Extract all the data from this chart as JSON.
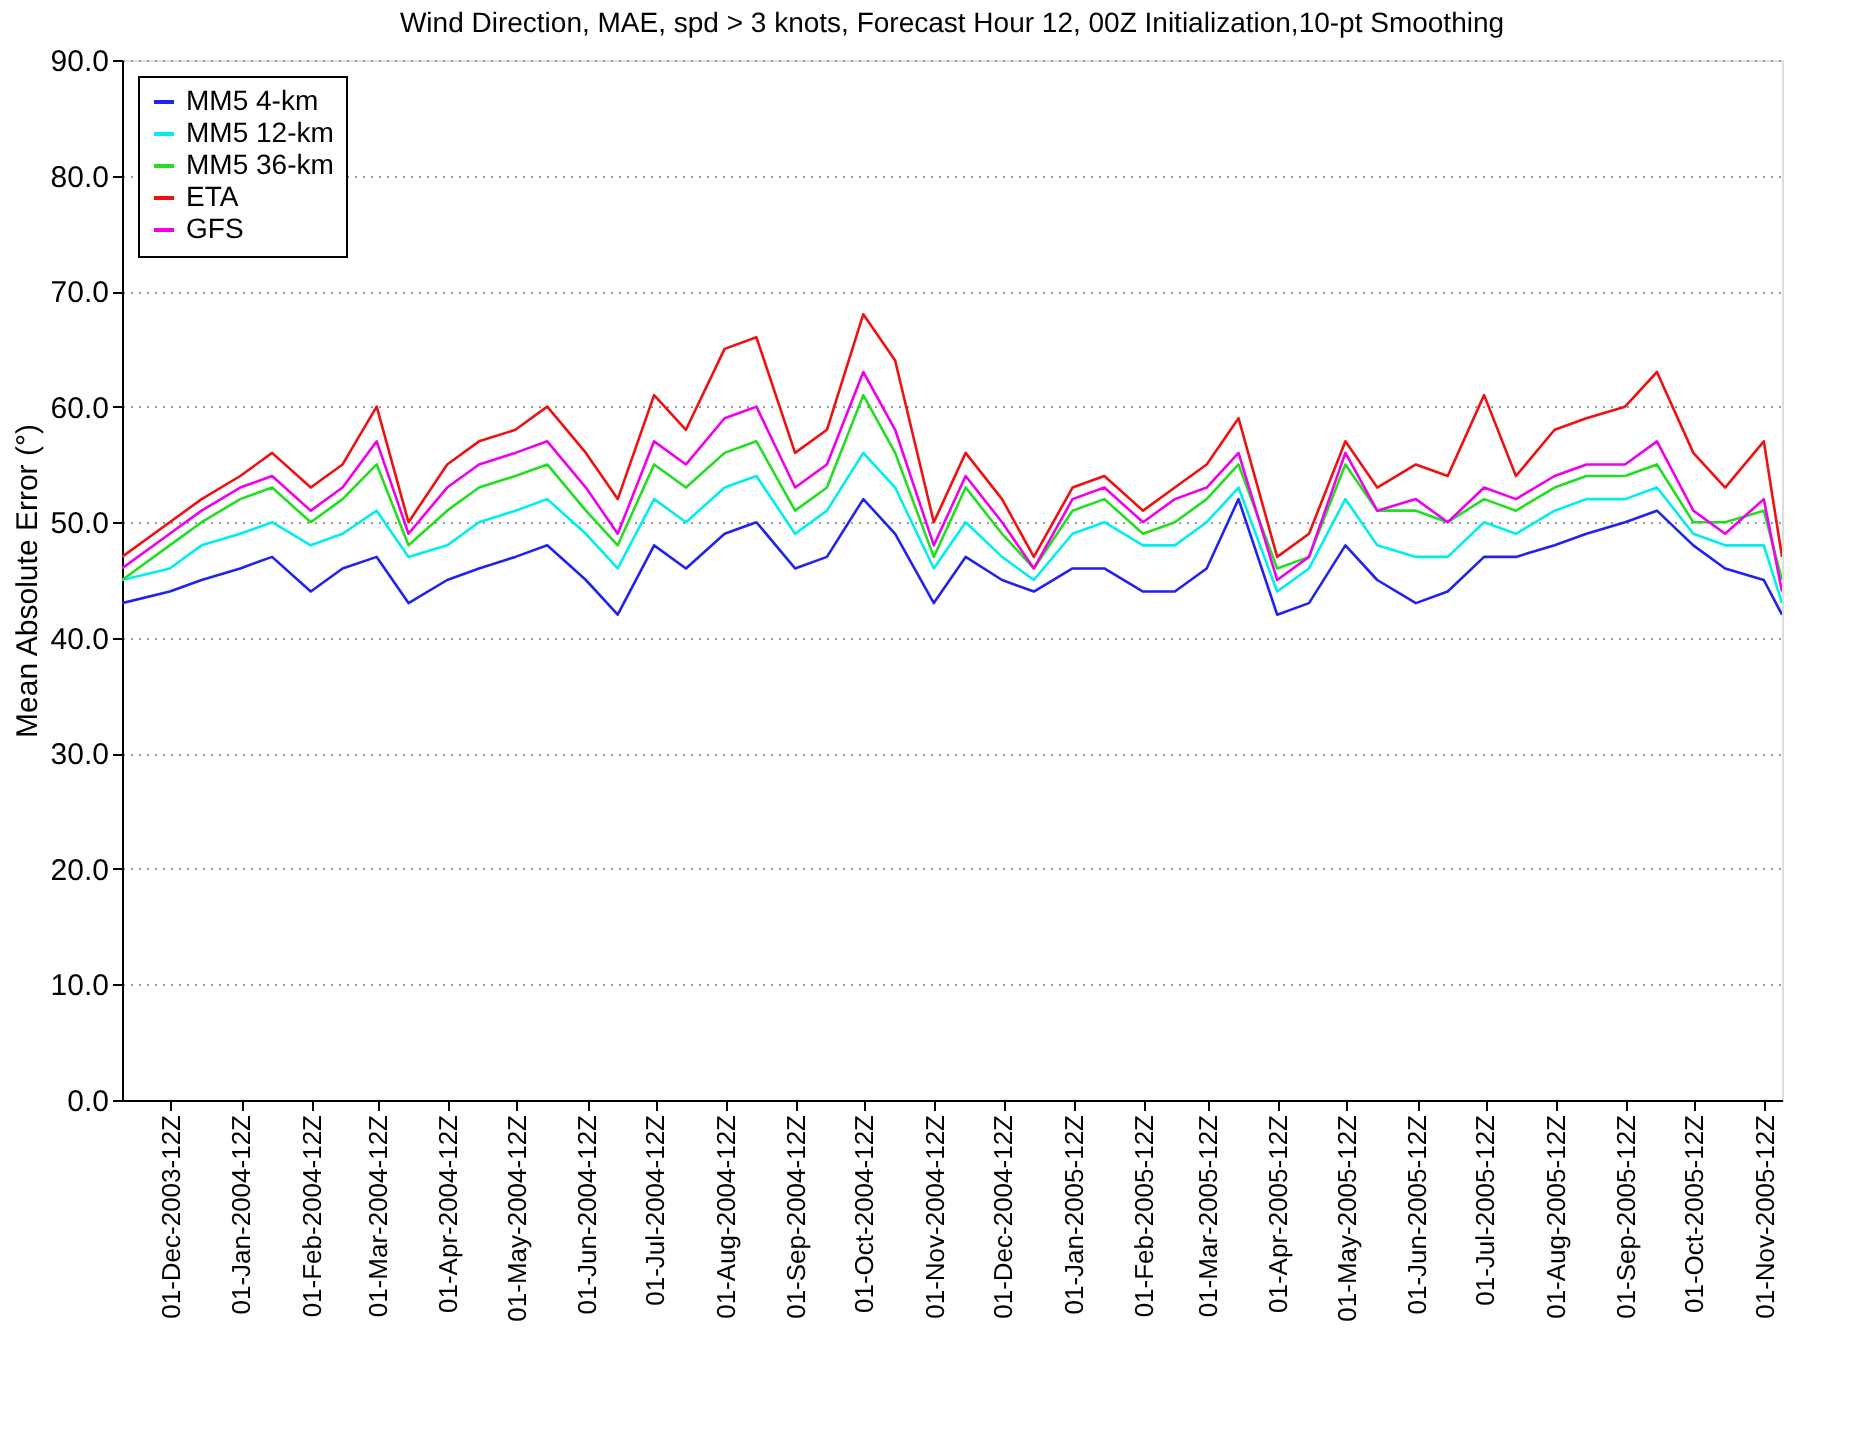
{
  "chart_data": {
    "type": "line",
    "title": "Wind Direction, MAE, spd > 3 knots, Forecast Hour 12, 00Z Initialization,10-pt Smoothing",
    "ylabel": "Mean Absolute Error (°)",
    "x": [
      "2003-11-10",
      "2003-12-01",
      "2003-12-15",
      "2004-01-01",
      "2004-01-15",
      "2004-02-01",
      "2004-02-15",
      "2004-03-01",
      "2004-03-15",
      "2004-04-01",
      "2004-04-15",
      "2004-05-01",
      "2004-05-15",
      "2004-06-01",
      "2004-06-15",
      "2004-07-01",
      "2004-07-15",
      "2004-08-01",
      "2004-08-15",
      "2004-09-01",
      "2004-09-15",
      "2004-10-01",
      "2004-10-15",
      "2004-11-01",
      "2004-11-15",
      "2004-12-01",
      "2004-12-15",
      "2005-01-01",
      "2005-01-15",
      "2005-02-01",
      "2005-02-15",
      "2005-03-01",
      "2005-03-15",
      "2005-04-01",
      "2005-04-15",
      "2005-05-01",
      "2005-05-15",
      "2005-06-01",
      "2005-06-15",
      "2005-07-01",
      "2005-07-15",
      "2005-08-01",
      "2005-08-15",
      "2005-09-01",
      "2005-09-15",
      "2005-10-01",
      "2005-10-15",
      "2005-11-01",
      "2005-11-09"
    ],
    "series": [
      {
        "name": "MM5 4-km",
        "color": "#2222ee",
        "values": [
          43,
          44,
          45,
          46,
          47,
          44,
          46,
          47,
          43,
          45,
          46,
          47,
          48,
          45,
          42,
          48,
          46,
          49,
          50,
          46,
          47,
          52,
          49,
          43,
          47,
          45,
          44,
          46,
          46,
          44,
          44,
          46,
          52,
          42,
          43,
          48,
          45,
          43,
          44,
          47,
          47,
          48,
          49,
          50,
          51,
          48,
          46,
          45,
          42
        ]
      },
      {
        "name": "MM5 12-km",
        "color": "#00eeee",
        "values": [
          45,
          46,
          48,
          49,
          50,
          48,
          49,
          51,
          47,
          48,
          50,
          51,
          52,
          49,
          46,
          52,
          50,
          53,
          54,
          49,
          51,
          56,
          53,
          46,
          50,
          47,
          45,
          49,
          50,
          48,
          48,
          50,
          53,
          44,
          46,
          52,
          48,
          47,
          47,
          50,
          49,
          51,
          52,
          52,
          53,
          49,
          48,
          48,
          43
        ]
      },
      {
        "name": "MM5 36-km",
        "color": "#22dd22",
        "values": [
          45,
          48,
          50,
          52,
          53,
          50,
          52,
          55,
          48,
          51,
          53,
          54,
          55,
          51,
          48,
          55,
          53,
          56,
          57,
          51,
          53,
          61,
          56,
          47,
          53,
          49,
          46,
          51,
          52,
          49,
          50,
          52,
          55,
          46,
          47,
          55,
          51,
          51,
          50,
          52,
          51,
          53,
          54,
          54,
          55,
          50,
          50,
          51,
          45
        ]
      },
      {
        "name": "ETA",
        "color": "#ee1111",
        "values": [
          47,
          50,
          52,
          54,
          56,
          53,
          55,
          60,
          50,
          55,
          57,
          58,
          60,
          56,
          52,
          61,
          58,
          65,
          66,
          56,
          58,
          68,
          64,
          50,
          56,
          52,
          47,
          53,
          54,
          51,
          53,
          55,
          59,
          47,
          49,
          57,
          53,
          55,
          54,
          61,
          54,
          58,
          59,
          60,
          63,
          56,
          53,
          57,
          47
        ]
      },
      {
        "name": "GFS",
        "color": "#ee00ee",
        "values": [
          46,
          49,
          51,
          53,
          54,
          51,
          53,
          57,
          49,
          53,
          55,
          56,
          57,
          53,
          49,
          57,
          55,
          59,
          60,
          53,
          55,
          63,
          58,
          48,
          54,
          50,
          46,
          52,
          53,
          50,
          52,
          53,
          56,
          45,
          47,
          56,
          51,
          52,
          50,
          53,
          52,
          54,
          55,
          55,
          57,
          51,
          49,
          52,
          44
        ]
      }
    ],
    "xlim": [
      "2003-11-10",
      "2005-11-09"
    ],
    "xticks": [
      {
        "value": "2003-12-01T12:00",
        "label": "01-Dec-2003-12Z"
      },
      {
        "value": "2004-01-01T12:00",
        "label": "01-Jan-2004-12Z"
      },
      {
        "value": "2004-02-01T12:00",
        "label": "01-Feb-2004-12Z"
      },
      {
        "value": "2004-03-01T12:00",
        "label": "01-Mar-2004-12Z"
      },
      {
        "value": "2004-04-01T12:00",
        "label": "01-Apr-2004-12Z"
      },
      {
        "value": "2004-05-01T12:00",
        "label": "01-May-2004-12Z"
      },
      {
        "value": "2004-06-01T12:00",
        "label": "01-Jun-2004-12Z"
      },
      {
        "value": "2004-07-01T12:00",
        "label": "01-Jul-2004-12Z"
      },
      {
        "value": "2004-08-01T12:00",
        "label": "01-Aug-2004-12Z"
      },
      {
        "value": "2004-09-01T12:00",
        "label": "01-Sep-2004-12Z"
      },
      {
        "value": "2004-10-01T12:00",
        "label": "01-Oct-2004-12Z"
      },
      {
        "value": "2004-11-01T12:00",
        "label": "01-Nov-2004-12Z"
      },
      {
        "value": "2004-12-01T12:00",
        "label": "01-Dec-2004-12Z"
      },
      {
        "value": "2005-01-01T12:00",
        "label": "01-Jan-2005-12Z"
      },
      {
        "value": "2005-02-01T12:00",
        "label": "01-Feb-2005-12Z"
      },
      {
        "value": "2005-03-01T12:00",
        "label": "01-Mar-2005-12Z"
      },
      {
        "value": "2005-04-01T12:00",
        "label": "01-Apr-2005-12Z"
      },
      {
        "value": "2005-05-01T12:00",
        "label": "01-May-2005-12Z"
      },
      {
        "value": "2005-06-01T12:00",
        "label": "01-Jun-2005-12Z"
      },
      {
        "value": "2005-07-01T12:00",
        "label": "01-Jul-2005-12Z"
      },
      {
        "value": "2005-08-01T12:00",
        "label": "01-Aug-2005-12Z"
      },
      {
        "value": "2005-09-01T12:00",
        "label": "01-Sep-2005-12Z"
      },
      {
        "value": "2005-10-01T12:00",
        "label": "01-Oct-2005-12Z"
      },
      {
        "value": "2005-11-01T12:00",
        "label": "01-Nov-2005-12Z"
      }
    ],
    "ylim": [
      0,
      90
    ],
    "yticks": [
      {
        "value": 0,
        "label": "0.0"
      },
      {
        "value": 10,
        "label": "10.0"
      },
      {
        "value": 20,
        "label": "20.0"
      },
      {
        "value": 30,
        "label": "30.0"
      },
      {
        "value": 40,
        "label": "40.0"
      },
      {
        "value": 50,
        "label": "50.0"
      },
      {
        "value": 60,
        "label": "60.0"
      },
      {
        "value": 70,
        "label": "70.0"
      },
      {
        "value": 80,
        "label": "80.0"
      },
      {
        "value": 90,
        "label": "90.0"
      }
    ],
    "grid": "y",
    "legend": "top left",
    "marker": "none",
    "line_style": "solid"
  }
}
